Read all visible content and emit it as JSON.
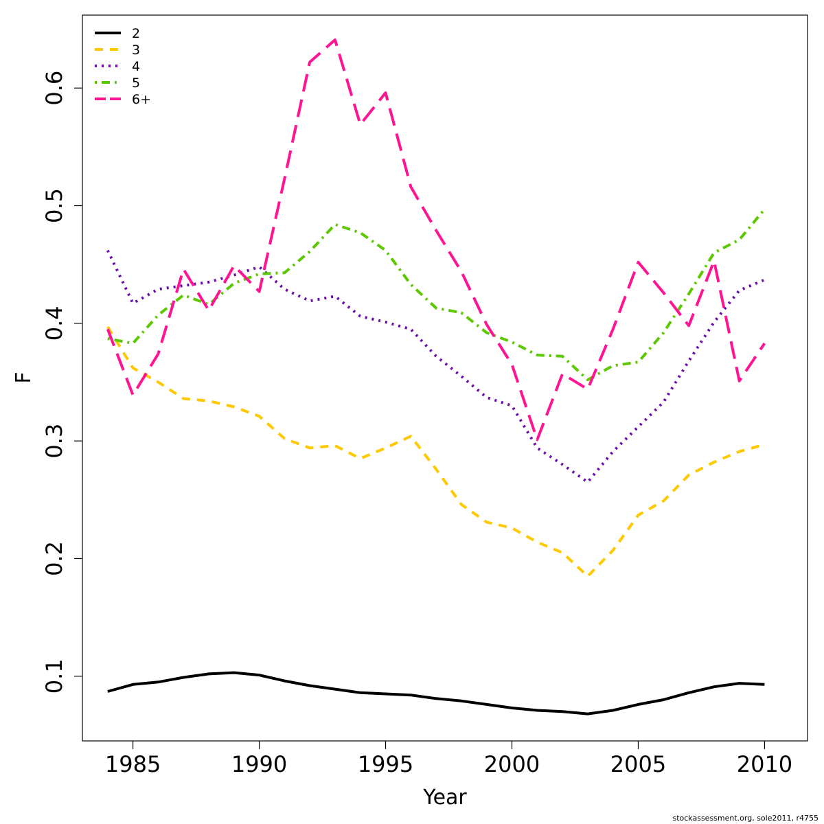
{
  "chart_data": {
    "type": "line",
    "xlabel": "Year",
    "ylabel": "F",
    "xlim": [
      1983,
      2011.7
    ],
    "ylim": [
      0.045,
      0.662
    ],
    "x_ticks": [
      1985,
      1990,
      1995,
      2000,
      2005,
      2010
    ],
    "y_ticks": [
      0.1,
      0.2,
      0.3,
      0.4,
      0.5,
      0.6
    ],
    "grid": false,
    "legend_position": "top-left",
    "x": [
      1984,
      1985,
      1986,
      1987,
      1988,
      1989,
      1990,
      1991,
      1992,
      1993,
      1994,
      1995,
      1996,
      1997,
      1998,
      1999,
      2000,
      2001,
      2002,
      2003,
      2004,
      2005,
      2006,
      2007,
      2008,
      2009,
      2010
    ],
    "series": [
      {
        "name": "2",
        "color": "#000000",
        "dash": "solid",
        "values": [
          0.087,
          0.093,
          0.095,
          0.099,
          0.102,
          0.103,
          0.101,
          0.096,
          0.092,
          0.089,
          0.086,
          0.085,
          0.084,
          0.081,
          0.079,
          0.076,
          0.073,
          0.071,
          0.07,
          0.068,
          0.071,
          0.076,
          0.08,
          0.086,
          0.091,
          0.094,
          0.093
        ]
      },
      {
        "name": "3",
        "color": "#FFC800",
        "dash": "dashed",
        "values": [
          0.397,
          0.362,
          0.35,
          0.336,
          0.334,
          0.329,
          0.321,
          0.302,
          0.294,
          0.296,
          0.285,
          0.294,
          0.304,
          0.276,
          0.246,
          0.231,
          0.226,
          0.214,
          0.205,
          0.185,
          0.207,
          0.237,
          0.249,
          0.271,
          0.282,
          0.291,
          0.297
        ]
      },
      {
        "name": "4",
        "color": "#6A0DAD",
        "dash": "dotted",
        "values": [
          0.462,
          0.417,
          0.429,
          0.432,
          0.435,
          0.441,
          0.448,
          0.429,
          0.419,
          0.423,
          0.406,
          0.401,
          0.395,
          0.372,
          0.355,
          0.337,
          0.33,
          0.294,
          0.28,
          0.265,
          0.291,
          0.312,
          0.333,
          0.368,
          0.401,
          0.428,
          0.437
        ]
      },
      {
        "name": "5",
        "color": "#5CC800",
        "dash": "dotdash",
        "values": [
          0.387,
          0.383,
          0.407,
          0.424,
          0.416,
          0.434,
          0.442,
          0.443,
          0.461,
          0.484,
          0.477,
          0.462,
          0.433,
          0.413,
          0.409,
          0.392,
          0.384,
          0.373,
          0.372,
          0.352,
          0.364,
          0.367,
          0.392,
          0.425,
          0.46,
          0.471,
          0.497
        ]
      },
      {
        "name": "6+",
        "color": "#FF1493",
        "dash": "longdash",
        "values": [
          0.395,
          0.339,
          0.374,
          0.446,
          0.411,
          0.449,
          0.427,
          0.523,
          0.622,
          0.641,
          0.569,
          0.596,
          0.516,
          0.479,
          0.444,
          0.399,
          0.365,
          0.301,
          0.357,
          0.344,
          0.395,
          0.452,
          0.426,
          0.398,
          0.453,
          0.351,
          0.383
        ]
      }
    ]
  },
  "credit": "stockassessment.org, sole2011, r4755"
}
